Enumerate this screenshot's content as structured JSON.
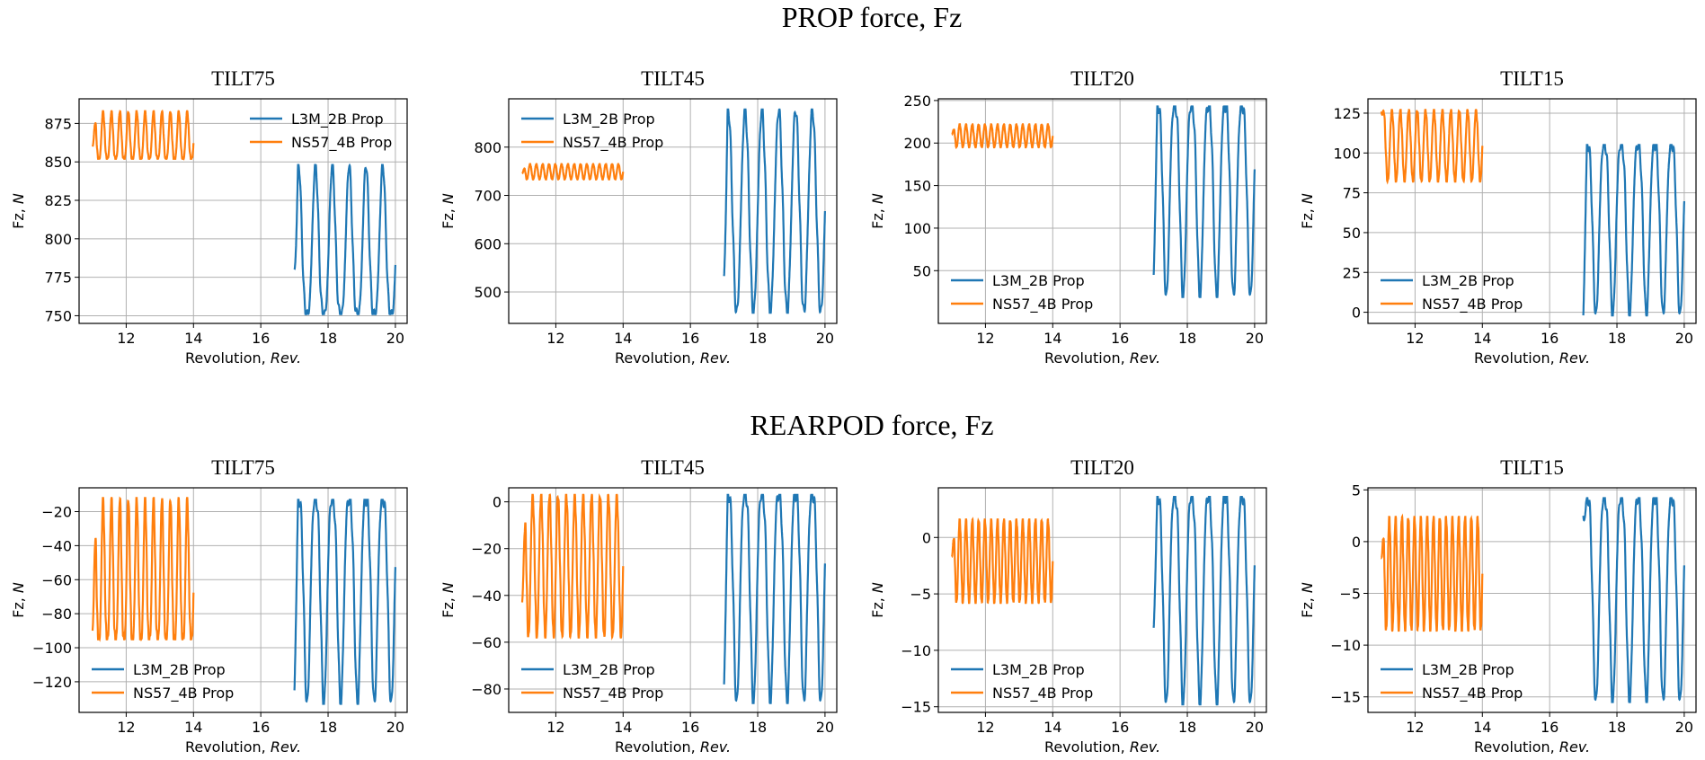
{
  "section_titles": [
    "PROP force, Fz",
    "REARPOD force, Fz"
  ],
  "colors": {
    "L3M_2B Prop": "#1f77b4",
    "NS57_4B Prop": "#ff7f0e"
  },
  "chart_data": [
    {
      "type": "line",
      "row": 0,
      "title": "TILT75",
      "xlabel": "Revolution, ",
      "xlabel_italic": "Rev.",
      "ylabel": "Fz, ",
      "ylabel_italic": "N",
      "xlim": [
        10.6,
        20.35
      ],
      "xticks": [
        12,
        14,
        16,
        18,
        20
      ],
      "ylim": [
        745,
        891
      ],
      "yticks": [
        750,
        775,
        800,
        825,
        850,
        875
      ],
      "legend": "upper-right",
      "series": [
        {
          "name": "NS57_4B Prop",
          "x_range": [
            11,
            14
          ],
          "cycles": 12,
          "min": 852,
          "max": 883,
          "start": 860,
          "sharp": "max"
        },
        {
          "name": "L3M_2B Prop",
          "x_range": [
            17,
            20
          ],
          "cycles": 6,
          "min": 751,
          "max": 848,
          "start": 780,
          "sharp": "max"
        }
      ]
    },
    {
      "type": "line",
      "row": 0,
      "title": "TILT45",
      "xlabel": "Revolution, ",
      "xlabel_italic": "Rev.",
      "ylabel": "Fz, ",
      "ylabel_italic": "N",
      "xlim": [
        10.6,
        20.35
      ],
      "xticks": [
        12,
        14,
        16,
        18,
        20
      ],
      "ylim": [
        435,
        900
      ],
      "yticks": [
        500,
        600,
        700,
        800
      ],
      "legend": "upper-left",
      "series": [
        {
          "name": "NS57_4B Prop",
          "x_range": [
            11,
            14
          ],
          "cycles": 16,
          "min": 733,
          "max": 765,
          "start": 745,
          "sharp": "none"
        },
        {
          "name": "L3M_2B Prop",
          "x_range": [
            17,
            20
          ],
          "cycles": 6,
          "min": 457,
          "max": 878,
          "start": 533,
          "sharp": "none"
        }
      ]
    },
    {
      "type": "line",
      "row": 0,
      "title": "TILT20",
      "xlabel": "Revolution, ",
      "xlabel_italic": "Rev.",
      "ylabel": "Fz, ",
      "ylabel_italic": "N",
      "xlim": [
        10.6,
        20.35
      ],
      "xticks": [
        12,
        14,
        16,
        18,
        20
      ],
      "ylim": [
        -12,
        252
      ],
      "yticks": [
        50,
        100,
        150,
        200,
        250
      ],
      "legend": "lower-left",
      "series": [
        {
          "name": "NS57_4B Prop",
          "x_range": [
            11,
            14
          ],
          "cycles": 16,
          "min": 195,
          "max": 222,
          "start": 210,
          "sharp": "none"
        },
        {
          "name": "L3M_2B Prop",
          "x_range": [
            17,
            20
          ],
          "cycles": 6,
          "min": 19,
          "max": 243,
          "start": 45,
          "sharp": "min"
        }
      ]
    },
    {
      "type": "line",
      "row": 0,
      "title": "TILT15",
      "xlabel": "Revolution, ",
      "xlabel_italic": "Rev.",
      "ylabel": "Fz, ",
      "ylabel_italic": "N",
      "xlim": [
        10.6,
        20.35
      ],
      "xticks": [
        12,
        14,
        16,
        18,
        20
      ],
      "ylim": [
        -7,
        134
      ],
      "yticks": [
        0,
        25,
        50,
        75,
        100,
        125
      ],
      "legend": "lower-left",
      "series": [
        {
          "name": "NS57_4B Prop",
          "x_range": [
            11,
            14
          ],
          "cycles": 12,
          "min": 82,
          "max": 127,
          "start": 126,
          "sharp": "none"
        },
        {
          "name": "L3M_2B Prop",
          "x_range": [
            17,
            20
          ],
          "cycles": 6,
          "min": -2,
          "max": 105,
          "start": -2,
          "sharp": "min"
        }
      ]
    },
    {
      "type": "line",
      "row": 1,
      "title": "TILT75",
      "xlabel": "Revolution, ",
      "xlabel_italic": "Rev.",
      "ylabel": "Fz, ",
      "ylabel_italic": "N",
      "xlim": [
        10.6,
        20.35
      ],
      "xticks": [
        12,
        14,
        16,
        18,
        20
      ],
      "ylim": [
        -138,
        -6
      ],
      "yticks": [
        -120,
        -100,
        -80,
        -60,
        -40,
        -20
      ],
      "legend": "lower-left",
      "series": [
        {
          "name": "NS57_4B Prop",
          "x_range": [
            11,
            14
          ],
          "cycles": 12,
          "min": -95,
          "max": -12,
          "start": -90,
          "sharp": "max"
        },
        {
          "name": "L3M_2B Prop",
          "x_range": [
            17,
            20
          ],
          "cycles": 6,
          "min": -133,
          "max": -13,
          "start": -125,
          "sharp": "min"
        }
      ]
    },
    {
      "type": "line",
      "row": 1,
      "title": "TILT45",
      "xlabel": "Revolution, ",
      "xlabel_italic": "Rev.",
      "ylabel": "Fz, ",
      "ylabel_italic": "N",
      "xlim": [
        10.6,
        20.35
      ],
      "xticks": [
        12,
        14,
        16,
        18,
        20
      ],
      "ylim": [
        -90,
        6
      ],
      "yticks": [
        -80,
        -60,
        -40,
        -20,
        0
      ],
      "legend": "lower-left",
      "series": [
        {
          "name": "NS57_4B Prop",
          "x_range": [
            11,
            14
          ],
          "cycles": 12,
          "min": -58,
          "max": 3,
          "start": -43,
          "sharp": "none"
        },
        {
          "name": "L3M_2B Prop",
          "x_range": [
            17,
            20
          ],
          "cycles": 6,
          "min": -86,
          "max": 3,
          "start": -78,
          "sharp": "min"
        }
      ]
    },
    {
      "type": "line",
      "row": 1,
      "title": "TILT20",
      "xlabel": "Revolution, ",
      "xlabel_italic": "Rev.",
      "ylabel": "Fz, ",
      "ylabel_italic": "N",
      "xlim": [
        10.6,
        20.35
      ],
      "xticks": [
        12,
        14,
        16,
        18,
        20
      ],
      "ylim": [
        -15.5,
        4.4
      ],
      "yticks": [
        -15,
        -10,
        -5,
        0
      ],
      "legend": "lower-left",
      "series": [
        {
          "name": "NS57_4B Prop",
          "x_range": [
            11,
            14
          ],
          "cycles": 16,
          "min": -5.8,
          "max": 1.6,
          "start": -1.7,
          "sharp": "none"
        },
        {
          "name": "L3M_2B Prop",
          "x_range": [
            17,
            20
          ],
          "cycles": 6,
          "min": -14.8,
          "max": 3.6,
          "start": -8,
          "sharp": "min"
        }
      ]
    },
    {
      "type": "line",
      "row": 1,
      "title": "TILT15",
      "xlabel": "Revolution, ",
      "xlabel_italic": "Rev.",
      "ylabel": "Fz, ",
      "ylabel_italic": "N",
      "xlim": [
        10.6,
        20.35
      ],
      "xticks": [
        12,
        14,
        16,
        18,
        20
      ],
      "ylim": [
        -16.5,
        5.2
      ],
      "yticks": [
        -15,
        -10,
        -5,
        0,
        5
      ],
      "legend": "lower-left",
      "series": [
        {
          "name": "NS57_4B Prop",
          "x_range": [
            11,
            14
          ],
          "cycles": 16,
          "min": -8.6,
          "max": 2.4,
          "start": -1.5,
          "sharp": "none"
        },
        {
          "name": "L3M_2B Prop",
          "x_range": [
            17,
            20
          ],
          "cycles": 6,
          "min": -15.5,
          "max": 4.2,
          "start": 2.5,
          "sharp": "min"
        }
      ]
    }
  ]
}
